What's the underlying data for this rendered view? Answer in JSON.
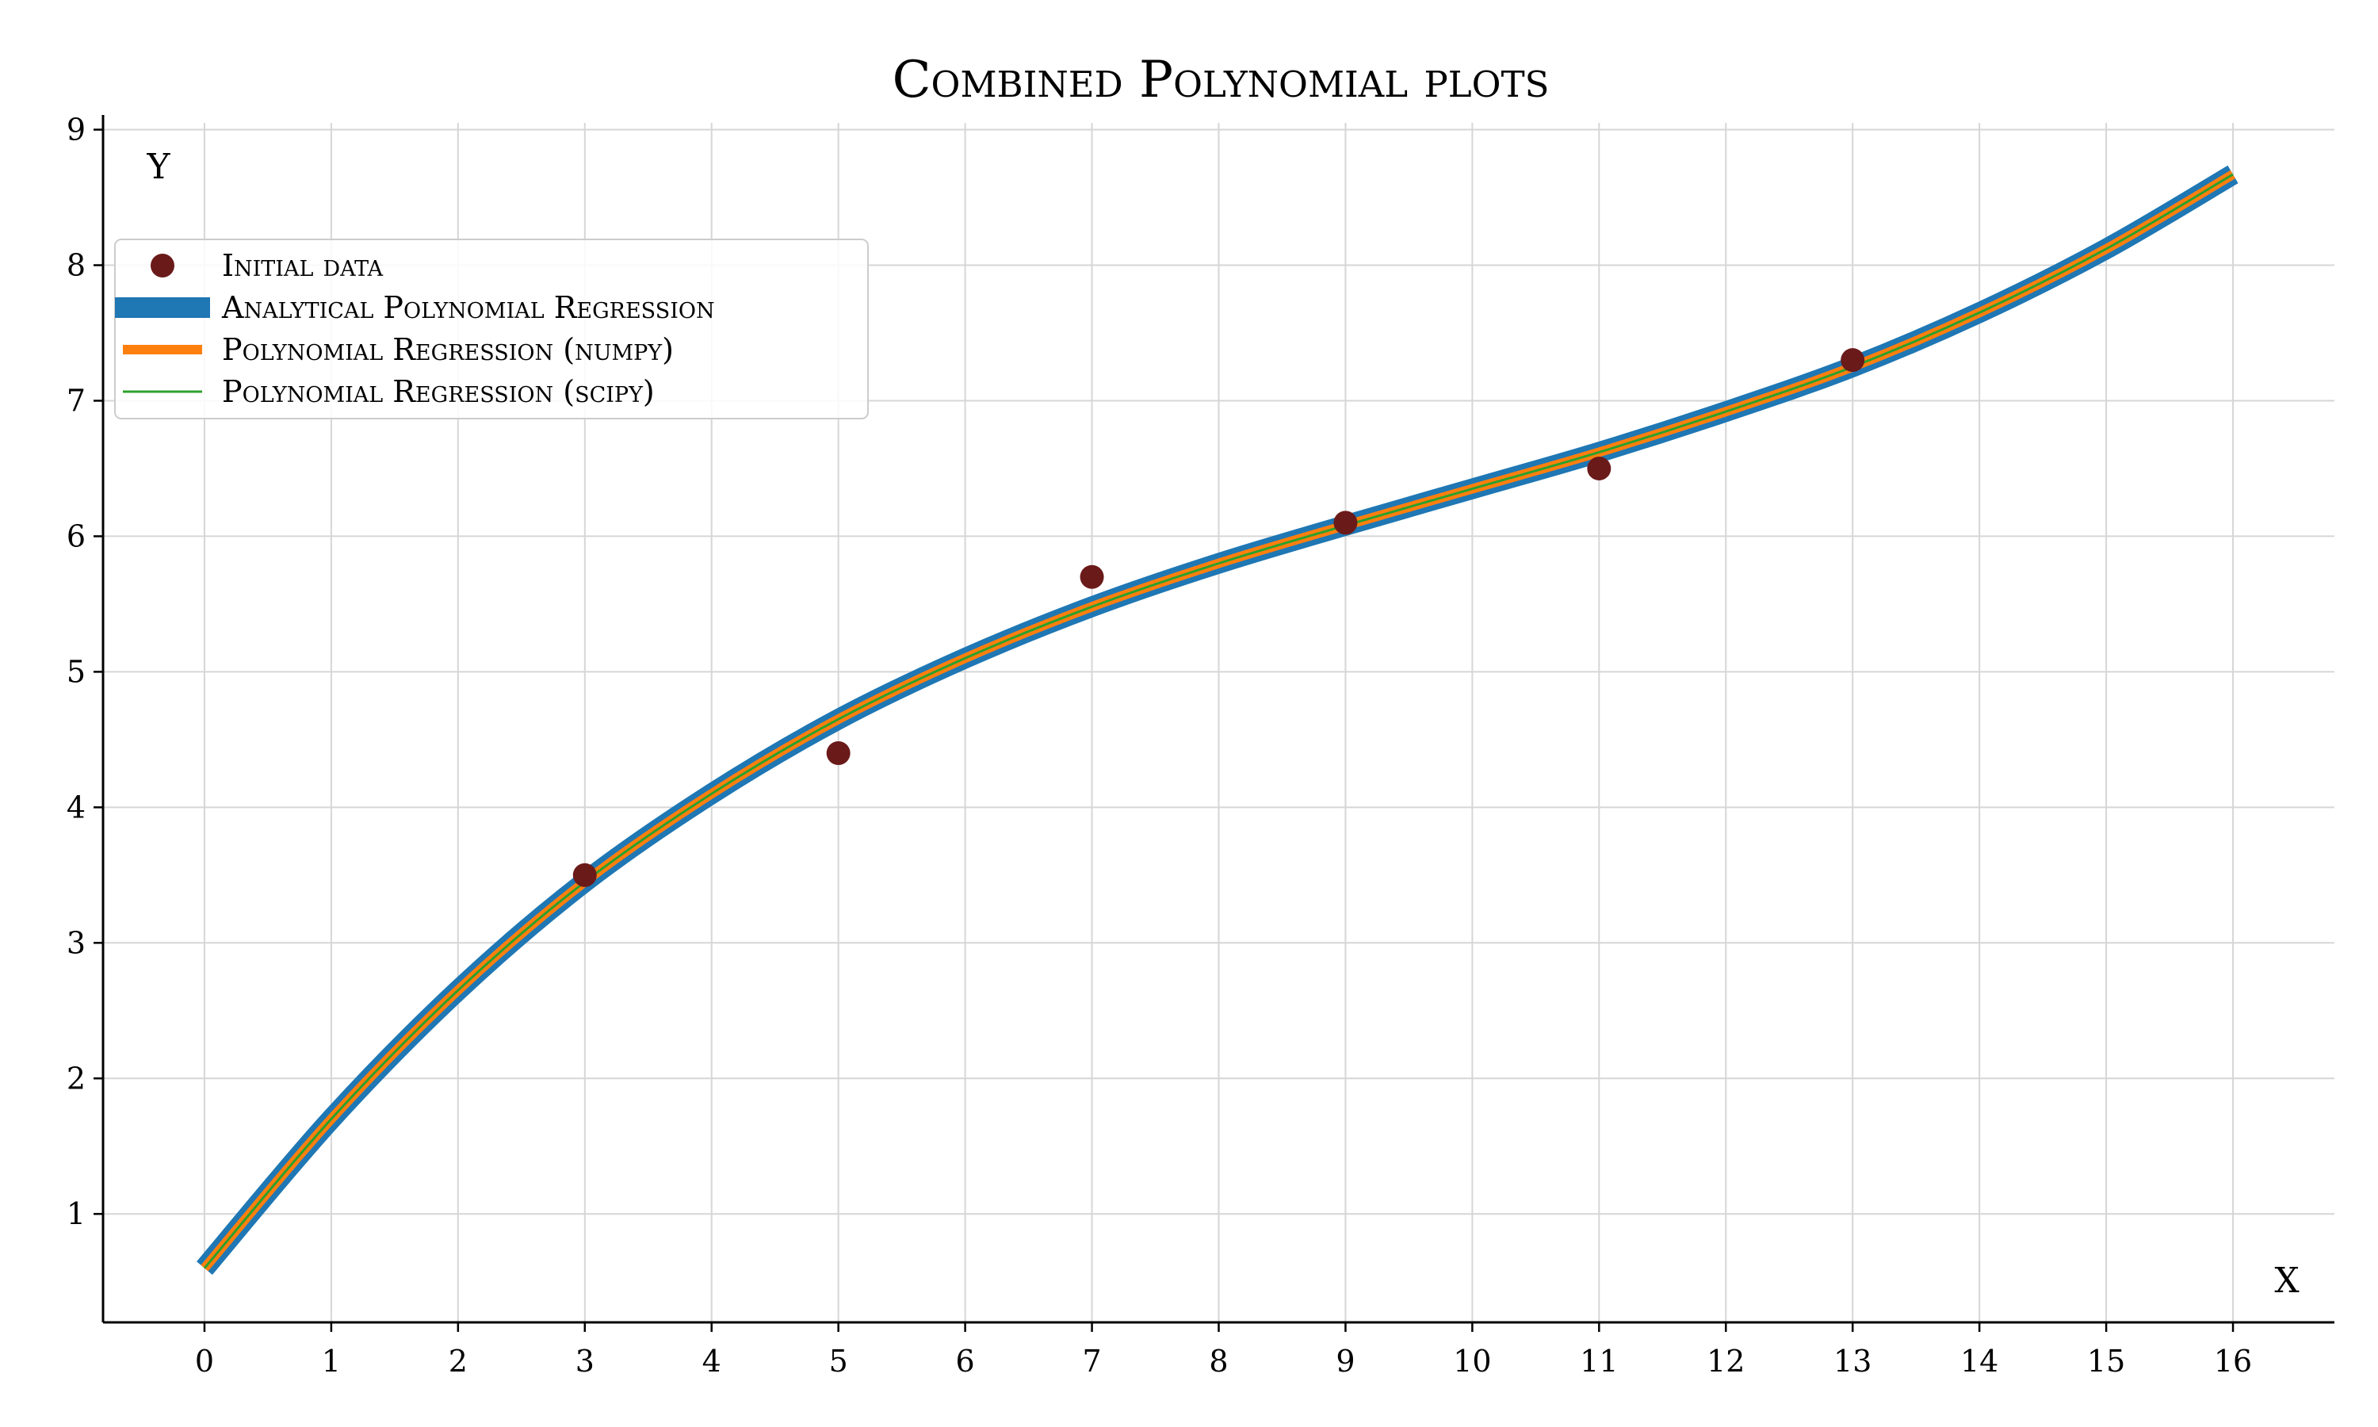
{
  "chart_data": {
    "type": "line",
    "title": "Combined Polynomial plots",
    "xlabel": "X",
    "ylabel": "Y",
    "xlim": [
      -0.8,
      16.8
    ],
    "ylim": [
      0.2,
      9.05
    ],
    "xticks": [
      0,
      1,
      2,
      3,
      4,
      5,
      6,
      7,
      8,
      9,
      10,
      11,
      12,
      13,
      14,
      15,
      16
    ],
    "yticks": [
      1,
      2,
      3,
      4,
      5,
      6,
      7,
      8,
      9
    ],
    "grid": true,
    "legend_position": "upper-left",
    "scatter": {
      "name": "Initial data",
      "color": "#6b1a1a",
      "x": [
        3,
        5,
        7,
        9,
        11,
        13
      ],
      "y": [
        3.5,
        4.4,
        5.7,
        6.1,
        6.5,
        7.3
      ]
    },
    "series": [
      {
        "name": "Analytical Polynomial Regression",
        "color": "#1f77b4",
        "x": [
          0,
          1,
          2,
          3,
          4,
          5,
          6,
          7,
          8,
          9,
          10,
          11,
          12,
          13,
          14,
          15,
          16
        ],
        "y": [
          0.6,
          1.7,
          2.65,
          3.45,
          4.1,
          4.65,
          5.1,
          5.48,
          5.8,
          6.08,
          6.35,
          6.62,
          6.92,
          7.25,
          7.65,
          8.12,
          8.67
        ]
      },
      {
        "name": "Polynomial Regression (numpy)",
        "color": "#ff7f0e",
        "x": [
          0,
          1,
          2,
          3,
          4,
          5,
          6,
          7,
          8,
          9,
          10,
          11,
          12,
          13,
          14,
          15,
          16
        ],
        "y": [
          0.6,
          1.7,
          2.65,
          3.45,
          4.1,
          4.65,
          5.1,
          5.48,
          5.8,
          6.08,
          6.35,
          6.62,
          6.92,
          7.25,
          7.65,
          8.12,
          8.67
        ]
      },
      {
        "name": "Polynomial Regression (scipy)",
        "color": "#2ca02c",
        "x": [
          0,
          1,
          2,
          3,
          4,
          5,
          6,
          7,
          8,
          9,
          10,
          11,
          12,
          13,
          14,
          15,
          16
        ],
        "y": [
          0.6,
          1.7,
          2.65,
          3.45,
          4.1,
          4.65,
          5.1,
          5.48,
          5.8,
          6.08,
          6.35,
          6.62,
          6.92,
          7.25,
          7.65,
          8.12,
          8.67
        ]
      }
    ]
  }
}
